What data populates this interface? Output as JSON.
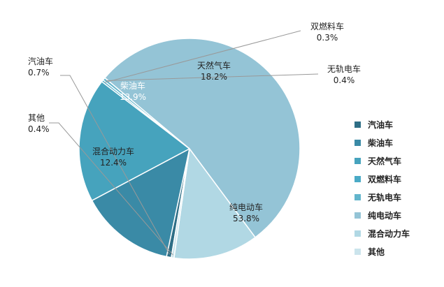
{
  "chart_data": {
    "type": "pie",
    "categories": [
      "汽油车",
      "柴油车",
      "天然气车",
      "双燃料车",
      "无轨电车",
      "纯电动车",
      "混合动力车",
      "其他"
    ],
    "values": [
      0.7,
      13.9,
      18.2,
      0.3,
      0.4,
      53.8,
      12.4,
      0.4
    ],
    "value_labels": [
      "0.7%",
      "13.9%",
      "18.2%",
      "0.3%",
      "0.4%",
      "53.8%",
      "12.4%",
      "0.4%"
    ],
    "colors": [
      "#2e6e86",
      "#3a8aa6",
      "#46a3bd",
      "#4aaac6",
      "#62b5cc",
      "#94c4d6",
      "#b1d8e4",
      "#cbe4ec"
    ],
    "legend_position": "right"
  }
}
